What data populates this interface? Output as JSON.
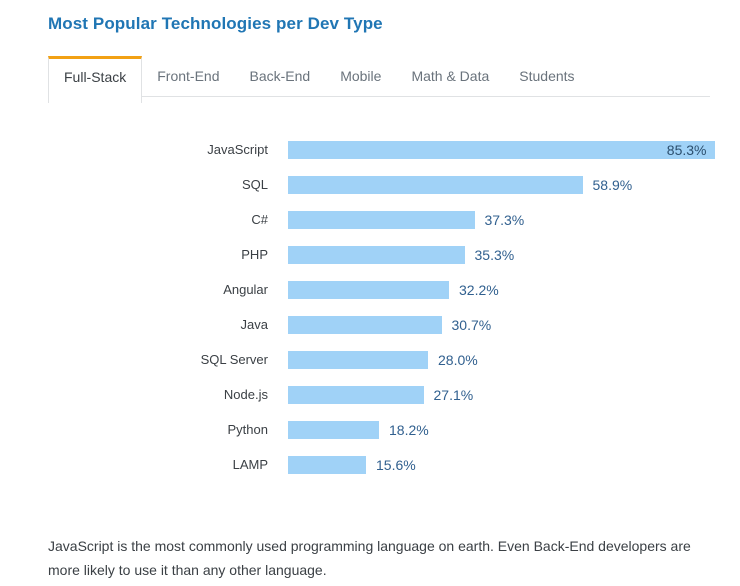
{
  "header": {
    "title": "Most Popular Technologies per Dev Type"
  },
  "tabs": [
    {
      "label": "Full-Stack",
      "active": true
    },
    {
      "label": "Front-End",
      "active": false
    },
    {
      "label": "Back-End",
      "active": false
    },
    {
      "label": "Mobile",
      "active": false
    },
    {
      "label": "Math & Data",
      "active": false
    },
    {
      "label": "Students",
      "active": false
    }
  ],
  "chart_data": {
    "type": "bar",
    "orientation": "horizontal",
    "title": "Most Popular Technologies per Dev Type",
    "active_dev_type": "Full-Stack",
    "categories": [
      "JavaScript",
      "SQL",
      "C#",
      "PHP",
      "Angular",
      "Java",
      "SQL Server",
      "Node.js",
      "Python",
      "LAMP"
    ],
    "values": [
      85.3,
      58.9,
      37.3,
      35.3,
      32.2,
      30.7,
      28.0,
      27.1,
      18.2,
      15.6
    ],
    "value_suffix": "%",
    "xlim": [
      0,
      100
    ],
    "grid": false,
    "bar_color": "#a0d2f7",
    "value_label_color": "#31608f",
    "label_inside_bar_threshold": 80
  },
  "caption": {
    "text": "JavaScript is the most commonly used programming language on earth. Even Back-End developers are more likely to use it than any other language."
  },
  "colors": {
    "title_blue": "#2076b4",
    "accent_orange": "#f2a114",
    "tab_border_gray": "#e0e2e4",
    "bar_blue": "#a0d2f7",
    "value_text_blue": "#31608f",
    "body_text": "#3b4045"
  }
}
